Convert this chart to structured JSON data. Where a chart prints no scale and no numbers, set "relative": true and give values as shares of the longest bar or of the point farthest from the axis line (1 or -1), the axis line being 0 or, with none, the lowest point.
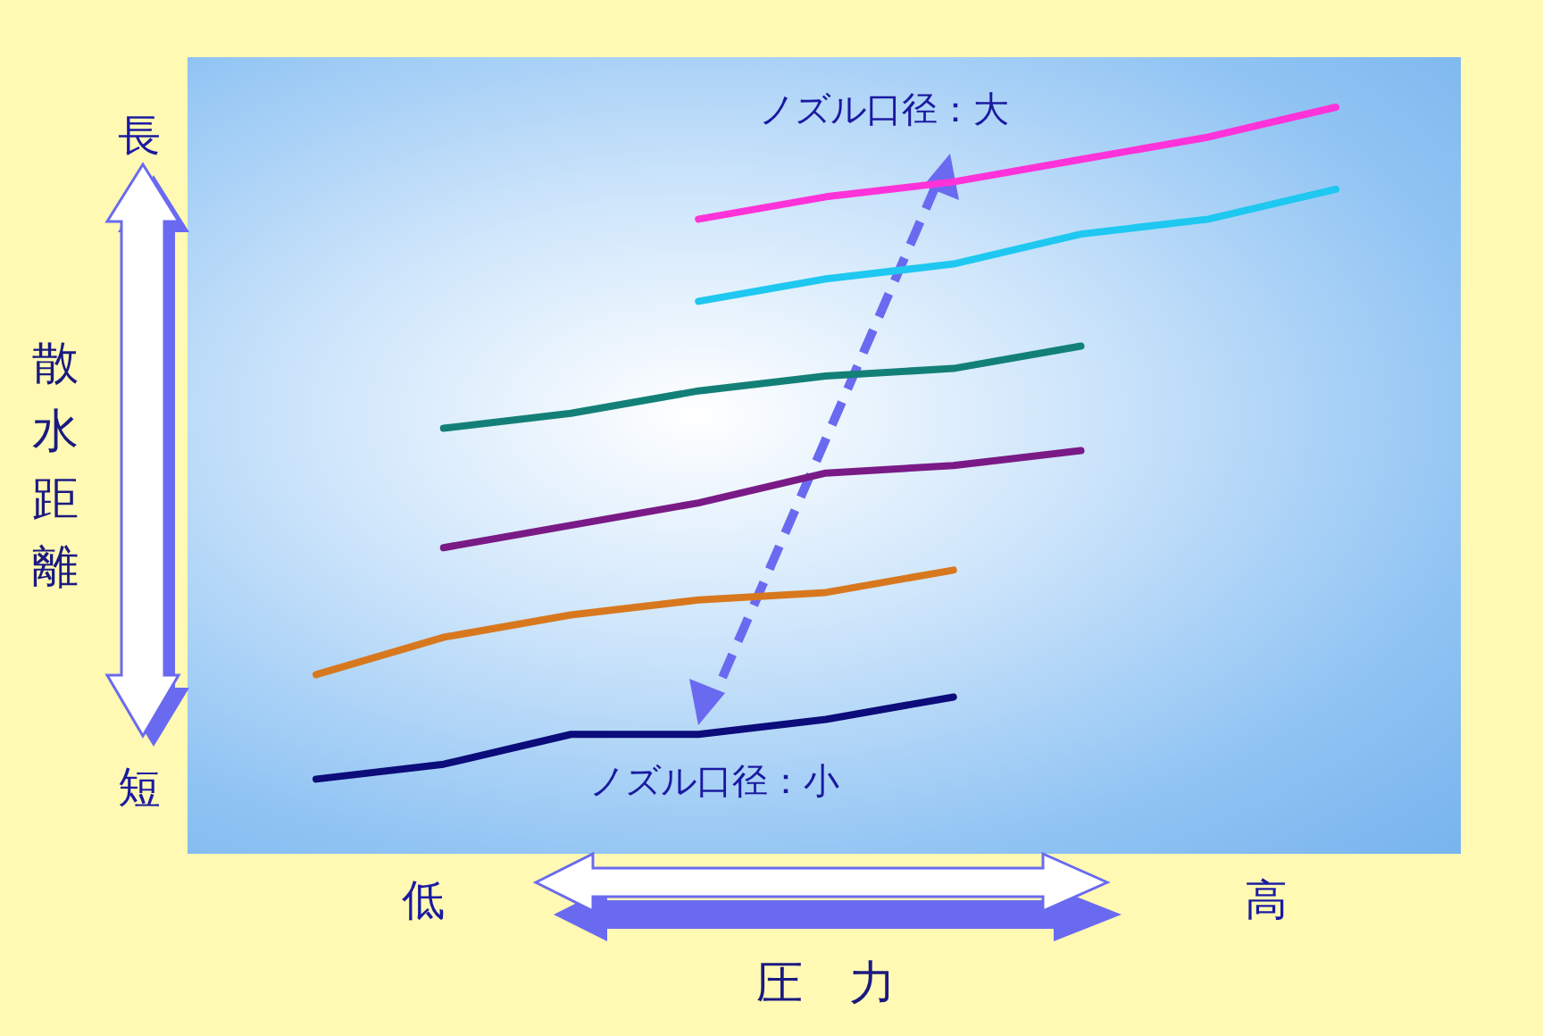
{
  "chart_data": {
    "type": "line",
    "relative": true,
    "marker": "none",
    "grid": false,
    "xlabel": "圧　力",
    "ylabel": "散水距離",
    "categories": [
      null,
      null,
      null,
      null,
      null,
      null,
      null,
      null,
      null
    ],
    "series": [
      {
        "color": "#0c0c7a",
        "values": [
          0.1,
          0.12,
          0.16,
          0.16,
          0.18,
          0.21,
          null,
          null,
          null
        ]
      },
      {
        "color": "#d8781e",
        "values": [
          0.24,
          0.29,
          0.32,
          0.34,
          0.35,
          0.38,
          null,
          null,
          null
        ]
      },
      {
        "color": "#7a1a86",
        "values": [
          null,
          0.41,
          0.44,
          0.47,
          0.51,
          0.52,
          0.54,
          null,
          null
        ]
      },
      {
        "color": "#138078",
        "values": [
          null,
          0.57,
          0.59,
          0.62,
          0.64,
          0.65,
          0.68,
          null,
          null
        ]
      },
      {
        "color": "#1ec8f0",
        "values": [
          null,
          null,
          null,
          0.74,
          0.77,
          0.79,
          0.83,
          0.85,
          0.89
        ]
      },
      {
        "color": "#ff33d9",
        "values": [
          null,
          null,
          null,
          0.85,
          0.88,
          0.9,
          0.93,
          0.96,
          1
        ]
      }
    ],
    "annotations": [
      "長",
      "短",
      "低",
      "高",
      "ノズル口径：大",
      "ノズル口径：小"
    ]
  }
}
